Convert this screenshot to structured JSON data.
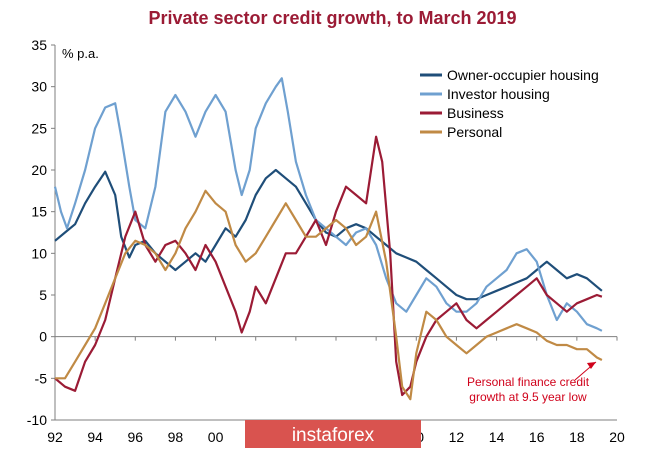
{
  "chart_data": {
    "type": "line",
    "title": "Private sector credit growth, to March 2019",
    "ylabel": "% p.a.",
    "xlabel": "",
    "ylim": [
      -10,
      35
    ],
    "xlim": [
      1992,
      2020
    ],
    "y_ticks": [
      -10,
      -5,
      0,
      5,
      10,
      15,
      20,
      25,
      30,
      35
    ],
    "x_ticks": [
      1992,
      1994,
      1996,
      1998,
      2000,
      2002,
      2004,
      2006,
      2008,
      2010,
      2012,
      2014,
      2016,
      2018,
      2020
    ],
    "x_tick_labels": [
      "92",
      "94",
      "96",
      "98",
      "00",
      "02",
      "04",
      "06",
      "08",
      "10",
      "12",
      "14",
      "16",
      "18",
      "20"
    ],
    "grid": false,
    "legend_position": "top-right",
    "series": [
      {
        "name": "Owner-occupier housing",
        "color": "#1f4e79",
        "points": [
          [
            1992,
            11.5
          ],
          [
            1992.5,
            12.5
          ],
          [
            1993,
            13.5
          ],
          [
            1993.5,
            16
          ],
          [
            1994,
            18
          ],
          [
            1994.5,
            19.8
          ],
          [
            1995,
            17
          ],
          [
            1995.3,
            12
          ],
          [
            1995.7,
            9.5
          ],
          [
            1996,
            11
          ],
          [
            1996.5,
            11.5
          ],
          [
            1997,
            10
          ],
          [
            1997.5,
            9
          ],
          [
            1998,
            8
          ],
          [
            1998.5,
            9
          ],
          [
            1999,
            10
          ],
          [
            1999.5,
            9
          ],
          [
            2000,
            11
          ],
          [
            2000.5,
            13
          ],
          [
            2001,
            12
          ],
          [
            2001.5,
            14
          ],
          [
            2002,
            17
          ],
          [
            2002.5,
            19
          ],
          [
            2003,
            20
          ],
          [
            2003.5,
            19
          ],
          [
            2004,
            18
          ],
          [
            2004.5,
            16
          ],
          [
            2005,
            14
          ],
          [
            2005.5,
            12.5
          ],
          [
            2006,
            12
          ],
          [
            2006.5,
            13
          ],
          [
            2007,
            13.5
          ],
          [
            2007.5,
            13
          ],
          [
            2008,
            12
          ],
          [
            2008.5,
            11
          ],
          [
            2009,
            10
          ],
          [
            2009.5,
            9.5
          ],
          [
            2010,
            9
          ],
          [
            2010.5,
            8
          ],
          [
            2011,
            7
          ],
          [
            2011.5,
            6
          ],
          [
            2012,
            5
          ],
          [
            2012.5,
            4.5
          ],
          [
            2013,
            4.5
          ],
          [
            2013.5,
            5
          ],
          [
            2014,
            5.5
          ],
          [
            2014.5,
            6
          ],
          [
            2015,
            6.5
          ],
          [
            2015.5,
            7
          ],
          [
            2016,
            8
          ],
          [
            2016.5,
            9
          ],
          [
            2017,
            8
          ],
          [
            2017.5,
            7
          ],
          [
            2018,
            7.5
          ],
          [
            2018.5,
            7
          ],
          [
            2019,
            6
          ],
          [
            2019.25,
            5.5
          ]
        ]
      },
      {
        "name": "Investor housing",
        "color": "#6fa0d0",
        "points": [
          [
            1992,
            18
          ],
          [
            1992.3,
            15
          ],
          [
            1992.6,
            13
          ],
          [
            1993,
            16
          ],
          [
            1993.5,
            20
          ],
          [
            1994,
            25
          ],
          [
            1994.5,
            27.5
          ],
          [
            1995,
            28
          ],
          [
            1995.3,
            24
          ],
          [
            1995.7,
            18
          ],
          [
            1996,
            14
          ],
          [
            1996.5,
            13
          ],
          [
            1997,
            18
          ],
          [
            1997.5,
            27
          ],
          [
            1998,
            29
          ],
          [
            1998.5,
            27
          ],
          [
            1999,
            24
          ],
          [
            1999.5,
            27
          ],
          [
            2000,
            29
          ],
          [
            2000.5,
            27
          ],
          [
            2001,
            20
          ],
          [
            2001.3,
            17
          ],
          [
            2001.7,
            20
          ],
          [
            2002,
            25
          ],
          [
            2002.5,
            28
          ],
          [
            2003,
            30
          ],
          [
            2003.3,
            31
          ],
          [
            2003.6,
            27
          ],
          [
            2004,
            21
          ],
          [
            2004.5,
            17
          ],
          [
            2005,
            14
          ],
          [
            2005.5,
            13
          ],
          [
            2006,
            12
          ],
          [
            2006.5,
            11
          ],
          [
            2007,
            12.5
          ],
          [
            2007.5,
            13
          ],
          [
            2008,
            11
          ],
          [
            2008.5,
            7
          ],
          [
            2009,
            4
          ],
          [
            2009.5,
            3
          ],
          [
            2010,
            5
          ],
          [
            2010.5,
            7
          ],
          [
            2011,
            6
          ],
          [
            2011.5,
            4
          ],
          [
            2012,
            3
          ],
          [
            2012.5,
            3
          ],
          [
            2013,
            4
          ],
          [
            2013.5,
            6
          ],
          [
            2014,
            7
          ],
          [
            2014.5,
            8
          ],
          [
            2015,
            10
          ],
          [
            2015.5,
            10.5
          ],
          [
            2016,
            9
          ],
          [
            2016.5,
            5
          ],
          [
            2017,
            2
          ],
          [
            2017.5,
            4
          ],
          [
            2018,
            3
          ],
          [
            2018.5,
            1.5
          ],
          [
            2019,
            1
          ],
          [
            2019.25,
            0.7
          ]
        ]
      },
      {
        "name": "Business",
        "color": "#9b1b35",
        "points": [
          [
            1992,
            -5
          ],
          [
            1992.5,
            -6
          ],
          [
            1993,
            -6.5
          ],
          [
            1993.5,
            -3
          ],
          [
            1994,
            -1
          ],
          [
            1994.5,
            2
          ],
          [
            1995,
            7
          ],
          [
            1995.5,
            12
          ],
          [
            1996,
            15
          ],
          [
            1996.5,
            11
          ],
          [
            1997,
            9
          ],
          [
            1997.5,
            11
          ],
          [
            1998,
            11.5
          ],
          [
            1998.5,
            10
          ],
          [
            1999,
            8
          ],
          [
            1999.5,
            11
          ],
          [
            2000,
            9
          ],
          [
            2000.5,
            6
          ],
          [
            2001,
            3
          ],
          [
            2001.3,
            0.5
          ],
          [
            2001.7,
            3
          ],
          [
            2002,
            6
          ],
          [
            2002.5,
            4
          ],
          [
            2003,
            7
          ],
          [
            2003.5,
            10
          ],
          [
            2004,
            10
          ],
          [
            2004.5,
            12
          ],
          [
            2005,
            14
          ],
          [
            2005.5,
            11
          ],
          [
            2006,
            15
          ],
          [
            2006.5,
            18
          ],
          [
            2007,
            17
          ],
          [
            2007.5,
            16
          ],
          [
            2008,
            24
          ],
          [
            2008.3,
            21
          ],
          [
            2008.7,
            10
          ],
          [
            2009,
            -3
          ],
          [
            2009.3,
            -7
          ],
          [
            2009.7,
            -6
          ],
          [
            2010,
            -3
          ],
          [
            2010.5,
            0
          ],
          [
            2011,
            2
          ],
          [
            2011.5,
            3
          ],
          [
            2012,
            4
          ],
          [
            2012.5,
            2
          ],
          [
            2013,
            1
          ],
          [
            2013.5,
            2
          ],
          [
            2014,
            3
          ],
          [
            2014.5,
            4
          ],
          [
            2015,
            5
          ],
          [
            2015.5,
            6
          ],
          [
            2016,
            7
          ],
          [
            2016.5,
            5
          ],
          [
            2017,
            4
          ],
          [
            2017.5,
            3
          ],
          [
            2018,
            4
          ],
          [
            2018.5,
            4.5
          ],
          [
            2019,
            5
          ],
          [
            2019.25,
            4.8
          ]
        ]
      },
      {
        "name": "Personal",
        "color": "#c08a45",
        "points": [
          [
            1992,
            -5
          ],
          [
            1992.5,
            -5
          ],
          [
            1993,
            -3
          ],
          [
            1993.5,
            -1
          ],
          [
            1994,
            1
          ],
          [
            1994.5,
            4
          ],
          [
            1995,
            7
          ],
          [
            1995.5,
            10
          ],
          [
            1996,
            11.5
          ],
          [
            1996.5,
            11
          ],
          [
            1997,
            10
          ],
          [
            1997.5,
            8
          ],
          [
            1998,
            10
          ],
          [
            1998.5,
            13
          ],
          [
            1999,
            15
          ],
          [
            1999.5,
            17.5
          ],
          [
            2000,
            16
          ],
          [
            2000.5,
            15
          ],
          [
            2001,
            11
          ],
          [
            2001.5,
            9
          ],
          [
            2002,
            10
          ],
          [
            2002.5,
            12
          ],
          [
            2003,
            14
          ],
          [
            2003.5,
            16
          ],
          [
            2004,
            14
          ],
          [
            2004.5,
            12
          ],
          [
            2005,
            12
          ],
          [
            2005.5,
            13
          ],
          [
            2006,
            14
          ],
          [
            2006.5,
            13
          ],
          [
            2007,
            11
          ],
          [
            2007.5,
            12
          ],
          [
            2008,
            15
          ],
          [
            2008.5,
            9
          ],
          [
            2009,
            0
          ],
          [
            2009.3,
            -6
          ],
          [
            2009.7,
            -7.5
          ],
          [
            2010,
            -2
          ],
          [
            2010.5,
            3
          ],
          [
            2011,
            2
          ],
          [
            2011.5,
            0
          ],
          [
            2012,
            -1
          ],
          [
            2012.5,
            -2
          ],
          [
            2013,
            -1
          ],
          [
            2013.5,
            0
          ],
          [
            2014,
            0.5
          ],
          [
            2014.5,
            1
          ],
          [
            2015,
            1.5
          ],
          [
            2015.5,
            1
          ],
          [
            2016,
            0.5
          ],
          [
            2016.5,
            -0.5
          ],
          [
            2017,
            -1
          ],
          [
            2017.5,
            -1
          ],
          [
            2018,
            -1.5
          ],
          [
            2018.5,
            -1.5
          ],
          [
            2019,
            -2.5
          ],
          [
            2019.25,
            -2.8
          ]
        ]
      }
    ],
    "annotations": [
      {
        "text_lines": [
          "Personal finance credit",
          "growth at 9.5 year low"
        ],
        "color": "#d0021b"
      }
    ]
  },
  "watermark": {
    "text": "instaforex",
    "background": "#d9534f"
  }
}
